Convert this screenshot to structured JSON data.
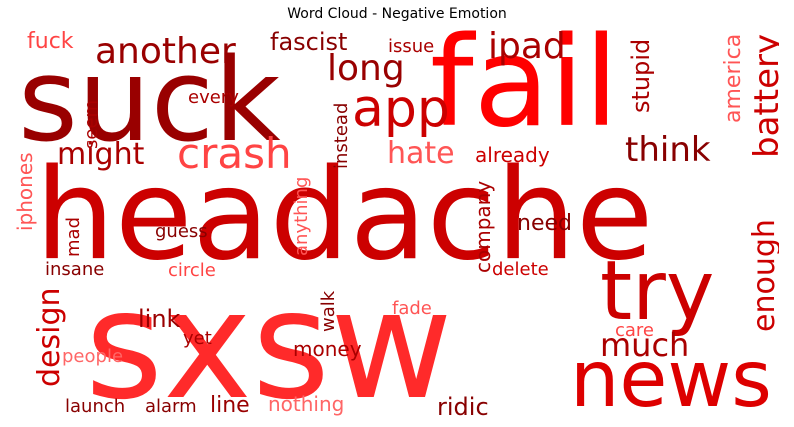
{
  "chart_data": {
    "type": "wordcloud",
    "title": "Word Cloud - Negative Emotion",
    "words": [
      {
        "text": "headache",
        "color": "#cc0000"
      },
      {
        "text": "sxsw",
        "color": "#ff2a2a"
      },
      {
        "text": "fail",
        "color": "#ff0000"
      },
      {
        "text": "suck",
        "color": "#990000"
      },
      {
        "text": "news",
        "color": "#dd0000"
      },
      {
        "text": "try",
        "color": "#cc0000"
      },
      {
        "text": "app",
        "color": "#cc0000"
      },
      {
        "text": "crash",
        "color": "#ff4444"
      },
      {
        "text": "another",
        "color": "#990000"
      },
      {
        "text": "ipad",
        "color": "#aa0000"
      },
      {
        "text": "long",
        "color": "#990000"
      },
      {
        "text": "battery",
        "color": "#cc0000"
      },
      {
        "text": "think",
        "color": "#880000"
      },
      {
        "text": "might",
        "color": "#aa0000"
      },
      {
        "text": "hate",
        "color": "#ff5555"
      },
      {
        "text": "enough",
        "color": "#cc0000"
      },
      {
        "text": "much",
        "color": "#aa0000"
      },
      {
        "text": "design",
        "color": "#cc0000"
      },
      {
        "text": "stupid",
        "color": "#aa0000"
      },
      {
        "text": "america",
        "color": "#ff5555"
      },
      {
        "text": "fascist",
        "color": "#880000"
      },
      {
        "text": "fuck",
        "color": "#ff4444"
      },
      {
        "text": "issue",
        "color": "#aa0000"
      },
      {
        "text": "already",
        "color": "#cc0000"
      },
      {
        "text": "need",
        "color": "#880000"
      },
      {
        "text": "company",
        "color": "#aa0000"
      },
      {
        "text": "iphones",
        "color": "#ff5555"
      },
      {
        "text": "seem",
        "color": "#aa0000"
      },
      {
        "text": "every",
        "color": "#aa0000"
      },
      {
        "text": "instead",
        "color": "#880000"
      },
      {
        "text": "anything",
        "color": "#ff5555"
      },
      {
        "text": "mad",
        "color": "#aa0000"
      },
      {
        "text": "guess",
        "color": "#880000"
      },
      {
        "text": "insane",
        "color": "#880000"
      },
      {
        "text": "circle",
        "color": "#ff4444"
      },
      {
        "text": "delete",
        "color": "#cc0000"
      },
      {
        "text": "link",
        "color": "#990000"
      },
      {
        "text": "walk",
        "color": "#880000"
      },
      {
        "text": "fade",
        "color": "#ff5555"
      },
      {
        "text": "care",
        "color": "#ff4444"
      },
      {
        "text": "yet",
        "color": "#aa0000"
      },
      {
        "text": "money",
        "color": "#aa0000"
      },
      {
        "text": "people",
        "color": "#ff6666"
      },
      {
        "text": "launch",
        "color": "#880000"
      },
      {
        "text": "alarm",
        "color": "#880000"
      },
      {
        "text": "line",
        "color": "#990000"
      },
      {
        "text": "nothing",
        "color": "#ff6666"
      },
      {
        "text": "ridic",
        "color": "#880000"
      }
    ]
  }
}
